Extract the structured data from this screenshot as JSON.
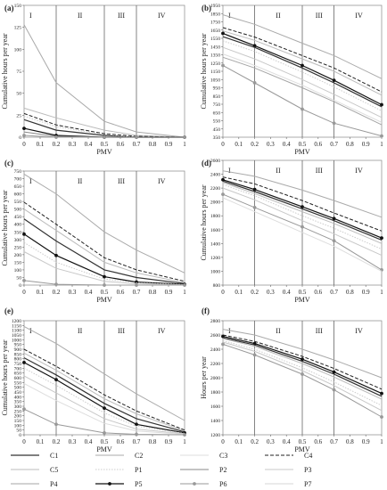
{
  "figure": {
    "x_categories": [
      "0",
      "0.1",
      "0.2",
      "0.3",
      "0.4",
      "0.5",
      "0.6",
      "0.7",
      "0.8",
      "0.9",
      "1"
    ],
    "legend": {
      "C1": {
        "color": "#333333",
        "dash": "solid",
        "marker": "none",
        "width": 1.2
      },
      "C2": {
        "color": "#aaaaaa",
        "dash": "solid",
        "marker": "none",
        "width": 1.0
      },
      "C3": {
        "color": "#dddddd",
        "dash": "solid",
        "marker": "none",
        "width": 1.0
      },
      "C4": {
        "color": "#222222",
        "dash": "dashed",
        "marker": "none",
        "width": 1.0
      },
      "C5": {
        "color": "#bbbbbb",
        "dash": "solid",
        "marker": "none",
        "width": 1.0
      },
      "P1": {
        "color": "#cccccc",
        "dash": "dotted",
        "marker": "none",
        "width": 1.0
      },
      "P2": {
        "color": "#888888",
        "dash": "solid",
        "marker": "none",
        "width": 1.0
      },
      "P3": {
        "color": "#c8c8c8",
        "dash": "solid",
        "marker": "none",
        "width": 1.0
      },
      "P4": {
        "color": "#a5a5a5",
        "dash": "solid",
        "marker": "none",
        "width": 1.0
      },
      "P5": {
        "color": "#111111",
        "dash": "solid",
        "marker": "circle",
        "width": 1.2
      },
      "P6": {
        "color": "#999999",
        "dash": "solid",
        "marker": "circle",
        "width": 1.0
      },
      "P7": {
        "color": "#d4d4d4",
        "dash": "solid",
        "marker": "none",
        "width": 1.0
      }
    },
    "legend_order": [
      "C1",
      "C2",
      "C3",
      "C4",
      "C5",
      "P1",
      "P2",
      "P3",
      "P4",
      "P5",
      "P6",
      "P7"
    ]
  },
  "chart_data": [
    {
      "panel": "(a)",
      "type": "line",
      "xlabel": "PMV",
      "ylabel": "Cumulative hours per year",
      "xlim": [
        0,
        1
      ],
      "ylim": [
        0,
        150
      ],
      "yticks": [
        0,
        25,
        50,
        75,
        100,
        125,
        150
      ],
      "zones": [
        "I",
        "II",
        "III",
        "IV"
      ],
      "zone_bounds": [
        0.2,
        0.5,
        0.7
      ],
      "x": [
        0,
        0.2,
        0.5,
        0.7,
        1.0
      ],
      "series": [
        {
          "name": "C2",
          "values": [
            128,
            62,
            18,
            6,
            0
          ]
        },
        {
          "name": "C5",
          "values": [
            33,
            22,
            8,
            2,
            0
          ]
        },
        {
          "name": "C4",
          "values": [
            27,
            14,
            4,
            1,
            0
          ]
        },
        {
          "name": "C1",
          "values": [
            20,
            8,
            2,
            0,
            0
          ]
        },
        {
          "name": "P1",
          "values": [
            24,
            12,
            3,
            0,
            0
          ]
        },
        {
          "name": "P5",
          "values": [
            10,
            2,
            0,
            0,
            0
          ]
        },
        {
          "name": "P2",
          "values": [
            6,
            1,
            0,
            0,
            0
          ]
        },
        {
          "name": "P6",
          "values": [
            2,
            0,
            0,
            0,
            0
          ]
        }
      ]
    },
    {
      "panel": "(b)",
      "type": "line",
      "xlabel": "PMV",
      "ylabel": "Cumulative hours per year",
      "xlim": [
        0,
        1
      ],
      "ylim": [
        350,
        1950
      ],
      "yticks": [
        350,
        450,
        550,
        650,
        750,
        850,
        950,
        1050,
        1150,
        1250,
        1350,
        1450,
        1550,
        1650,
        1750,
        1850,
        1950
      ],
      "zones": [
        "I",
        "II",
        "III",
        "IV"
      ],
      "zone_bounds": [
        0.2,
        0.5,
        0.7
      ],
      "x": [
        0,
        0.2,
        0.5,
        0.7,
        1.0
      ],
      "series": [
        {
          "name": "C2",
          "values": [
            1835,
            1720,
            1490,
            1340,
            1060
          ]
        },
        {
          "name": "C4",
          "values": [
            1680,
            1565,
            1340,
            1190,
            900
          ]
        },
        {
          "name": "C5",
          "values": [
            1640,
            1525,
            1300,
            1150,
            860
          ]
        },
        {
          "name": "P5",
          "values": [
            1610,
            1460,
            1220,
            1040,
            745
          ]
        },
        {
          "name": "C1",
          "values": [
            1570,
            1440,
            1190,
            1010,
            720
          ]
        },
        {
          "name": "P1",
          "values": [
            1520,
            1390,
            1140,
            960,
            670
          ]
        },
        {
          "name": "P3",
          "values": [
            1440,
            1300,
            1050,
            870,
            590
          ]
        },
        {
          "name": "C3",
          "values": [
            1360,
            1220,
            980,
            800,
            530
          ]
        },
        {
          "name": "P4",
          "values": [
            1320,
            1190,
            950,
            780,
            500
          ]
        },
        {
          "name": "P6",
          "values": [
            1220,
            1010,
            690,
            520,
            365
          ]
        }
      ]
    },
    {
      "panel": "(c)",
      "type": "line",
      "xlabel": "PMV",
      "ylabel": "Cumulative hours per year",
      "xlim": [
        0,
        1
      ],
      "ylim": [
        0,
        750
      ],
      "yticks": [
        0,
        50,
        100,
        150,
        200,
        250,
        300,
        350,
        400,
        450,
        500,
        550,
        600,
        650,
        700,
        750
      ],
      "zones": [
        "I",
        "II",
        "III",
        "IV"
      ],
      "zone_bounds": [
        0.2,
        0.5,
        0.7
      ],
      "x": [
        0,
        0.2,
        0.5,
        0.7,
        1.0
      ],
      "series": [
        {
          "name": "C2",
          "values": [
            730,
            600,
            350,
            230,
            80
          ]
        },
        {
          "name": "C4",
          "values": [
            545,
            400,
            180,
            100,
            25
          ]
        },
        {
          "name": "C5",
          "values": [
            500,
            360,
            150,
            80,
            15
          ]
        },
        {
          "name": "C1",
          "values": [
            435,
            290,
            100,
            50,
            10
          ]
        },
        {
          "name": "P5",
          "values": [
            335,
            195,
            55,
            20,
            5
          ]
        },
        {
          "name": "P1",
          "values": [
            280,
            150,
            40,
            15,
            3
          ]
        },
        {
          "name": "P3",
          "values": [
            220,
            110,
            25,
            8,
            2
          ]
        },
        {
          "name": "P6",
          "values": [
            30,
            5,
            0,
            0,
            0
          ]
        }
      ]
    },
    {
      "panel": "(d)",
      "type": "line",
      "xlabel": "PMV",
      "ylabel": "Cumulative hours per year",
      "xlim": [
        0,
        1
      ],
      "ylim": [
        800,
        2600
      ],
      "yticks": [
        800,
        1000,
        1200,
        1400,
        1600,
        1800,
        2000,
        2200,
        2400,
        2600
      ],
      "zones": [
        "I",
        "II",
        "III",
        "IV"
      ],
      "zone_bounds": [
        0.2,
        0.5,
        0.7
      ],
      "x": [
        0,
        0.2,
        0.5,
        0.7,
        1.0
      ],
      "series": [
        {
          "name": "C2",
          "values": [
            2450,
            2370,
            2170,
            2020,
            1780
          ]
        },
        {
          "name": "C4",
          "values": [
            2360,
            2260,
            2020,
            1840,
            1580
          ]
        },
        {
          "name": "P5",
          "values": [
            2320,
            2180,
            1930,
            1760,
            1480
          ]
        },
        {
          "name": "C1",
          "values": [
            2300,
            2150,
            1900,
            1730,
            1450
          ]
        },
        {
          "name": "C5",
          "values": [
            2280,
            2120,
            1860,
            1690,
            1400
          ]
        },
        {
          "name": "P1",
          "values": [
            2250,
            2090,
            1800,
            1620,
            1320
          ]
        },
        {
          "name": "P3",
          "values": [
            2200,
            2030,
            1730,
            1540,
            1230
          ]
        },
        {
          "name": "P6",
          "values": [
            2110,
            1920,
            1640,
            1440,
            1020
          ]
        },
        {
          "name": "C3",
          "values": [
            2060,
            1860,
            1560,
            1360,
            1000
          ]
        }
      ]
    },
    {
      "panel": "(e)",
      "type": "line",
      "xlabel": "PMV",
      "ylabel": "Cumulative hours per year",
      "xlim": [
        0,
        1
      ],
      "ylim": [
        0,
        1200
      ],
      "yticks": [
        0,
        50,
        100,
        150,
        200,
        250,
        300,
        350,
        400,
        450,
        500,
        550,
        600,
        650,
        700,
        750,
        800,
        850,
        900,
        950,
        1000,
        1050,
        1100,
        1150,
        1200
      ],
      "zones": [
        "I",
        "II",
        "III",
        "IV"
      ],
      "zone_bounds": [
        0.2,
        0.5,
        0.7
      ],
      "x": [
        0,
        0.2,
        0.5,
        0.7,
        1.0
      ],
      "series": [
        {
          "name": "C2",
          "values": [
            1140,
            960,
            640,
            430,
            150
          ]
        },
        {
          "name": "C4",
          "values": [
            900,
            720,
            420,
            250,
            50
          ]
        },
        {
          "name": "C5",
          "values": [
            860,
            680,
            380,
            220,
            40
          ]
        },
        {
          "name": "C1",
          "values": [
            810,
            630,
            330,
            170,
            30
          ]
        },
        {
          "name": "P5",
          "values": [
            760,
            580,
            280,
            110,
            20
          ]
        },
        {
          "name": "P1",
          "values": [
            700,
            520,
            230,
            90,
            15
          ]
        },
        {
          "name": "P3",
          "values": [
            620,
            440,
            170,
            60,
            10
          ]
        },
        {
          "name": "C3",
          "values": [
            540,
            360,
            120,
            40,
            5
          ]
        },
        {
          "name": "P6",
          "values": [
            270,
            110,
            20,
            5,
            0
          ]
        }
      ]
    },
    {
      "panel": "(f)",
      "type": "line",
      "xlabel": "PMV",
      "ylabel": "Hours per year",
      "xlim": [
        0,
        1
      ],
      "ylim": [
        1200,
        2800
      ],
      "yticks": [
        1200,
        1400,
        1600,
        1800,
        2000,
        2200,
        2400,
        2600,
        2800
      ],
      "zones": [
        "I",
        "II",
        "III",
        "IV"
      ],
      "zone_bounds": [
        0.2,
        0.5,
        0.7
      ],
      "x": [
        0,
        0.2,
        0.5,
        0.7,
        1.0
      ],
      "series": [
        {
          "name": "C2",
          "values": [
            2680,
            2600,
            2400,
            2250,
            2000
          ]
        },
        {
          "name": "C4",
          "values": [
            2600,
            2510,
            2300,
            2130,
            1840
          ]
        },
        {
          "name": "P5",
          "values": [
            2580,
            2480,
            2260,
            2080,
            1780
          ]
        },
        {
          "name": "C1",
          "values": [
            2560,
            2460,
            2230,
            2050,
            1740
          ]
        },
        {
          "name": "C5",
          "values": [
            2550,
            2440,
            2200,
            2010,
            1700
          ]
        },
        {
          "name": "P1",
          "values": [
            2520,
            2400,
            2140,
            1940,
            1610
          ]
        },
        {
          "name": "P3",
          "values": [
            2500,
            2370,
            2100,
            1890,
            1540
          ]
        },
        {
          "name": "P6",
          "values": [
            2470,
            2320,
            2050,
            1830,
            1450
          ]
        }
      ]
    }
  ]
}
